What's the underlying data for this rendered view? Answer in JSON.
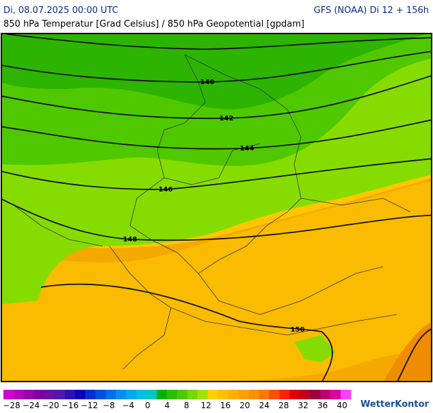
{
  "header": {
    "date": "Di, 08.07.2025 00:00 UTC",
    "model": "GFS (NOAA) Di 12 + 156h",
    "subtitle": "850 hPa Temperatur [Grad Celsius] / 850 hPa Geopotential [gpdam]"
  },
  "contours": {
    "labels": [
      "140",
      "142",
      "144",
      "146",
      "148",
      "150"
    ]
  },
  "legend": {
    "labels": [
      "−28",
      "−24",
      "−20",
      "−16",
      "−12",
      "−8",
      "−4",
      "0",
      "4",
      "8",
      "12",
      "16",
      "20",
      "24",
      "28",
      "32",
      "36",
      "40"
    ]
  },
  "brand": "WetterKontor"
}
